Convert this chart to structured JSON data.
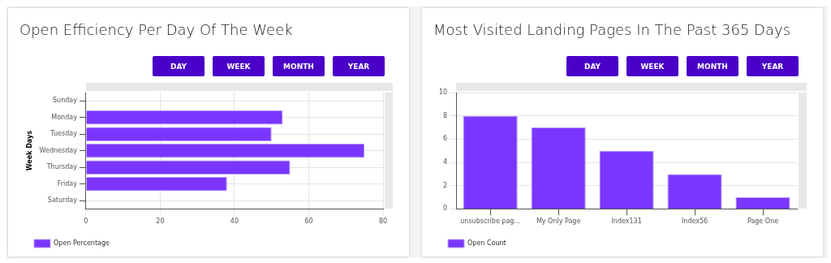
{
  "chart_data": [
    {
      "type": "bar",
      "orientation": "horizontal",
      "title": "Open Efficiency Per Day Of The Week",
      "ylabel": "Week Days",
      "categories": [
        "Sunday",
        "Monday",
        "Tuesday",
        "Wednesday",
        "Thursday",
        "Friday",
        "Saturday"
      ],
      "series": [
        {
          "name": "Open Percentage",
          "color": "#7a36ff",
          "values": [
            null,
            53,
            50,
            75,
            55,
            38,
            null
          ]
        }
      ],
      "xlim": [
        0,
        80
      ],
      "xticks": [
        0,
        20,
        40,
        60,
        80
      ],
      "grid": true,
      "legend": "bottom left",
      "annotations": [
        "DAY",
        "WEEK",
        "MONTH",
        "YEAR"
      ]
    },
    {
      "type": "bar",
      "title": "Most Visited Landing Pages In The Past 365 Days",
      "categories": [
        "unsubscribe pag...",
        "My Only Page",
        "Index131",
        "Index56",
        "Page One"
      ],
      "series": [
        {
          "name": "Open Count",
          "color": "#7a36ff",
          "values": [
            8,
            7,
            5,
            3,
            1
          ]
        }
      ],
      "ylim": [
        0,
        10
      ],
      "yticks": [
        0,
        2,
        4,
        6,
        8,
        10
      ],
      "grid": "y",
      "legend": "bottom left",
      "annotations": [
        "DAY",
        "WEEK",
        "MONTH",
        "YEAR"
      ]
    }
  ]
}
